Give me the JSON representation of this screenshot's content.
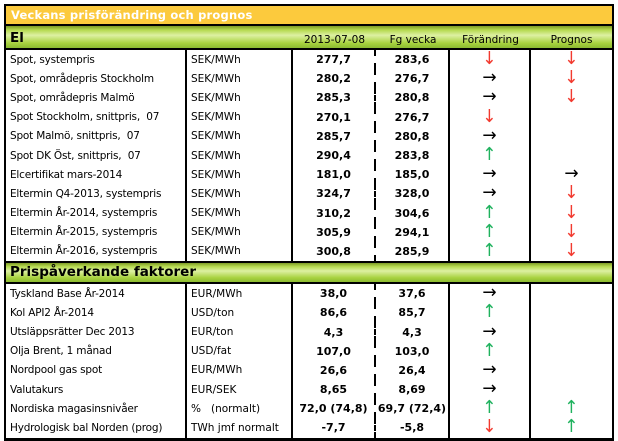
{
  "title": "Veckans prisförändring och prognos",
  "columns": {
    "date": "2013-07-08",
    "prev": "Fg vecka",
    "change": "Förändring",
    "forecast": "Prognos"
  },
  "colors": {
    "title_bar_gold": "#fcca3d",
    "section_bar_green": "#a8d23f",
    "arrow_up_green": "#1fb25e",
    "arrow_down_red": "#f23a2f",
    "arrow_flat_black": "#000000"
  },
  "arrows": {
    "up": {
      "glyph": "↑",
      "color": "#1fb25e",
      "name": "up-arrow-icon"
    },
    "down": {
      "glyph": "↓",
      "color": "#f23a2f",
      "name": "down-arrow-icon"
    },
    "flat": {
      "glyph": "→",
      "color": "#000000",
      "name": "right-arrow-icon"
    }
  },
  "sections": [
    {
      "header": "El",
      "rows": [
        {
          "label": "Spot, systempris",
          "unit": "SEK/MWh",
          "current": "277,7",
          "previous": "283,6",
          "change": "down",
          "forecast": "down"
        },
        {
          "label": "Spot, områdepris Stockholm",
          "unit": "SEK/MWh",
          "current": "280,2",
          "previous": "276,7",
          "change": "flat",
          "forecast": "down"
        },
        {
          "label": "Spot, områdepris Malmö",
          "unit": "SEK/MWh",
          "current": "285,3",
          "previous": "280,8",
          "change": "flat",
          "forecast": "down"
        },
        {
          "label": "Spot Stockholm, snittpris,  07",
          "unit": "SEK/MWh",
          "current": "270,1",
          "previous": "276,7",
          "change": "down",
          "forecast": ""
        },
        {
          "label": "Spot Malmö, snittpris,  07",
          "unit": "SEK/MWh",
          "current": "285,7",
          "previous": "280,8",
          "change": "flat",
          "forecast": ""
        },
        {
          "label": "Spot DK Öst, snittpris,  07",
          "unit": "SEK/MWh",
          "current": "290,4",
          "previous": "283,8",
          "change": "up",
          "forecast": ""
        },
        {
          "label": "Elcertifikat mars-2014",
          "unit": "SEK/MWh",
          "current": "181,0",
          "previous": "185,0",
          "change": "flat",
          "forecast": "flat"
        },
        {
          "label": "Eltermin Q4-2013, systempris",
          "unit": "SEK/MWh",
          "current": "324,7",
          "previous": "328,0",
          "change": "flat",
          "forecast": "down"
        },
        {
          "label": "Eltermin År-2014, systempris",
          "unit": "SEK/MWh",
          "current": "310,2",
          "previous": "304,6",
          "change": "up",
          "forecast": "down"
        },
        {
          "label": "Eltermin År-2015, systempris",
          "unit": "SEK/MWh",
          "current": "305,9",
          "previous": "294,1",
          "change": "up",
          "forecast": "down"
        },
        {
          "label": "Eltermin År-2016, systempris",
          "unit": "SEK/MWh",
          "current": "300,8",
          "previous": "285,9",
          "change": "up",
          "forecast": "down"
        }
      ]
    },
    {
      "header": "Prispåverkande faktorer",
      "rows": [
        {
          "label": "Tyskland Base År-2014",
          "unit": "EUR/MWh",
          "current": "38,0",
          "previous": "37,6",
          "change": "flat",
          "forecast": ""
        },
        {
          "label": "Kol API2 År-2014",
          "unit": "USD/ton",
          "current": "86,6",
          "previous": "85,7",
          "change": "up",
          "forecast": ""
        },
        {
          "label": "Utsläppsrätter Dec 2013",
          "unit": "EUR/ton",
          "current": "4,3",
          "previous": "4,3",
          "change": "flat",
          "forecast": ""
        },
        {
          "label": "Olja Brent, 1 månad",
          "unit": "USD/fat",
          "current": "107,0",
          "previous": "103,0",
          "change": "up",
          "forecast": ""
        },
        {
          "label": "Nordpool gas spot",
          "unit": "EUR/MWh",
          "current": "26,6",
          "previous": "26,4",
          "change": "flat",
          "forecast": ""
        },
        {
          "label": "Valutakurs",
          "unit": "EUR/SEK",
          "current": "8,65",
          "previous": "8,69",
          "change": "flat",
          "forecast": ""
        },
        {
          "label": "Nordiska magasinsnivåer",
          "unit": "%   (normalt)",
          "current": "72,0 (74,8)",
          "previous": "69,7 (72,4)",
          "change": "up",
          "forecast": "up"
        },
        {
          "label": "Hydrologisk bal Norden (prog)",
          "unit": "TWh jmf normalt",
          "current": "-7,7",
          "previous": "-5,8",
          "change": "down",
          "forecast": "up"
        }
      ]
    }
  ]
}
